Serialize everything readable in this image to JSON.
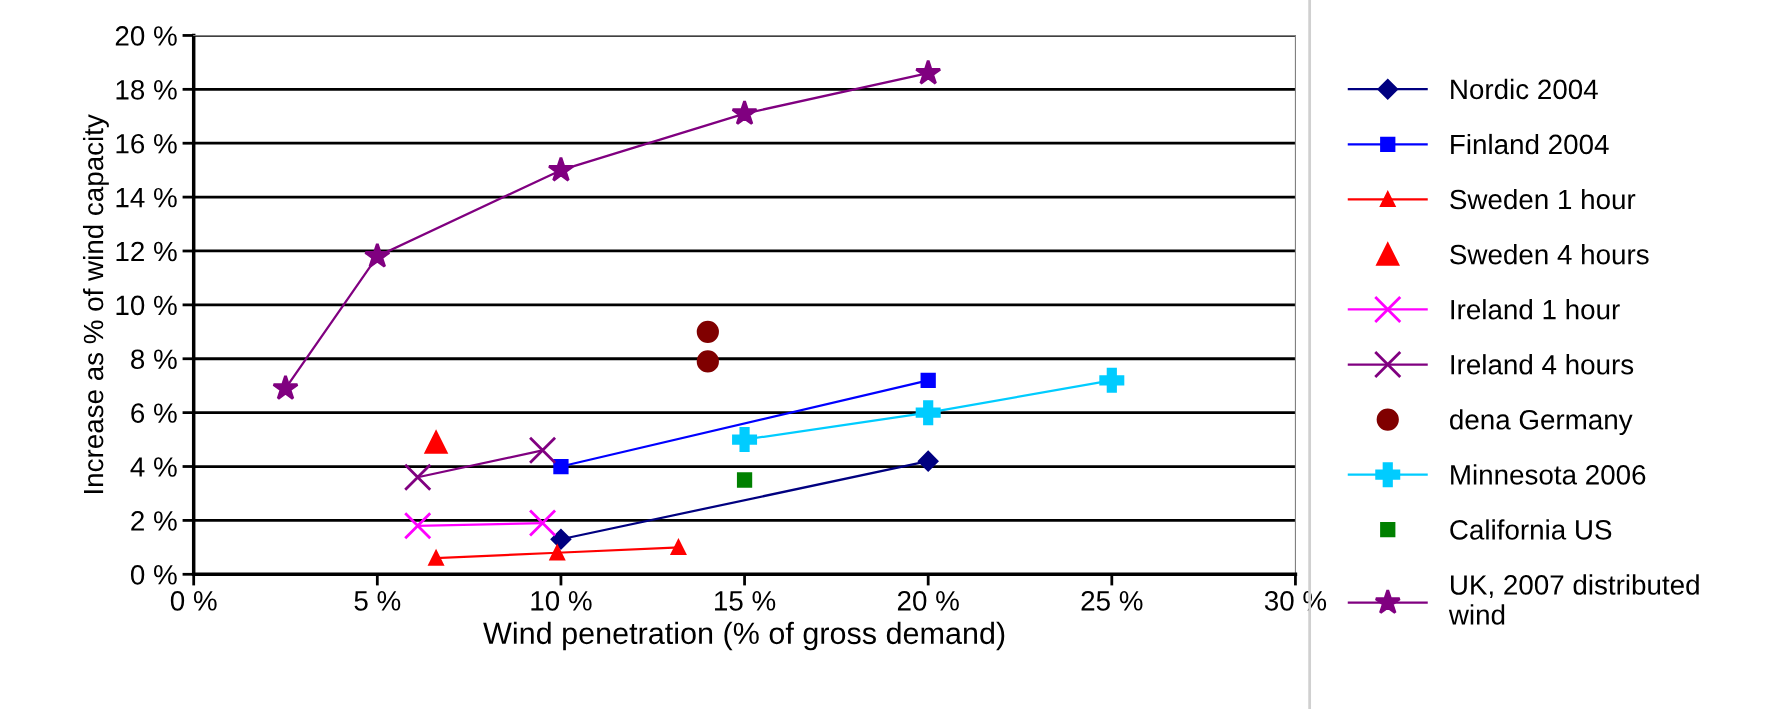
{
  "chart_data": {
    "type": "line",
    "xlabel": "Wind penetration (% of gross demand)",
    "ylabel": "Increase as % of wind capacity",
    "xlim": [
      0,
      30
    ],
    "xticks": [
      {
        "value": 0,
        "label": "0 %"
      },
      {
        "value": 5,
        "label": "5 %"
      },
      {
        "value": 10,
        "label": "10 %"
      },
      {
        "value": 15,
        "label": "15 %"
      },
      {
        "value": 20,
        "label": "20 %"
      },
      {
        "value": 25,
        "label": "25 %"
      },
      {
        "value": 30,
        "label": "30 %"
      }
    ],
    "ylim": [
      0,
      20
    ],
    "yticks": [
      {
        "value": 0,
        "label": "0 %"
      },
      {
        "value": 2,
        "label": "2 %"
      },
      {
        "value": 4,
        "label": "4 %"
      },
      {
        "value": 6,
        "label": "6 %"
      },
      {
        "value": 8,
        "label": "8 %"
      },
      {
        "value": 10,
        "label": "10 %"
      },
      {
        "value": 12,
        "label": "12 %"
      },
      {
        "value": 14,
        "label": "14 %"
      },
      {
        "value": 16,
        "label": "16 %"
      },
      {
        "value": 18,
        "label": "18 %"
      },
      {
        "value": 20,
        "label": "20 %"
      }
    ],
    "grid": "y",
    "legend": "right",
    "series": [
      {
        "name": "Nordic 2004",
        "color": "#000080",
        "marker": "diamond",
        "x": [
          10,
          20
        ],
        "values": [
          1.3,
          4.2
        ]
      },
      {
        "name": "Finland 2004",
        "color": "#0000ff",
        "marker": "square",
        "x": [
          10,
          20
        ],
        "values": [
          4.0,
          7.2
        ]
      },
      {
        "name": "Sweden 1 hour",
        "color": "#ff0000",
        "marker": "triangle",
        "x": [
          6.6,
          9.9,
          13.2
        ],
        "values": [
          0.6,
          0.8,
          1.0
        ]
      },
      {
        "name": "Sweden 4 hours",
        "type": "scatter",
        "color": "#ff0000",
        "marker": "triangle",
        "x": [
          6.6
        ],
        "values": [
          4.9
        ]
      },
      {
        "name": "Ireland 1 hour",
        "color": "#ff00ff",
        "marker": "cross",
        "x": [
          6.1,
          9.5
        ],
        "values": [
          1.8,
          1.9
        ]
      },
      {
        "name": "Ireland 4 hours",
        "color": "#800080",
        "marker": "cross",
        "x": [
          6.1,
          9.5
        ],
        "values": [
          3.6,
          4.6
        ]
      },
      {
        "name": "dena Germany",
        "type": "scatter",
        "color": "#800000",
        "marker": "circle",
        "x": [
          14,
          14
        ],
        "values": [
          9.0,
          7.9
        ]
      },
      {
        "name": "Minnesota 2006",
        "color": "#00ccff",
        "marker": "plus",
        "x": [
          15,
          20,
          25
        ],
        "values": [
          5.0,
          6.0,
          7.2
        ]
      },
      {
        "name": "California US",
        "type": "scatter",
        "color": "#008000",
        "marker": "square",
        "x": [
          15
        ],
        "values": [
          3.5
        ]
      },
      {
        "name": "UK, 2007 distributed\nwind",
        "color": "#800080",
        "marker": "star",
        "x": [
          2.5,
          5,
          10,
          15,
          20
        ],
        "values": [
          6.9,
          11.8,
          15.0,
          17.1,
          18.6
        ]
      }
    ]
  }
}
